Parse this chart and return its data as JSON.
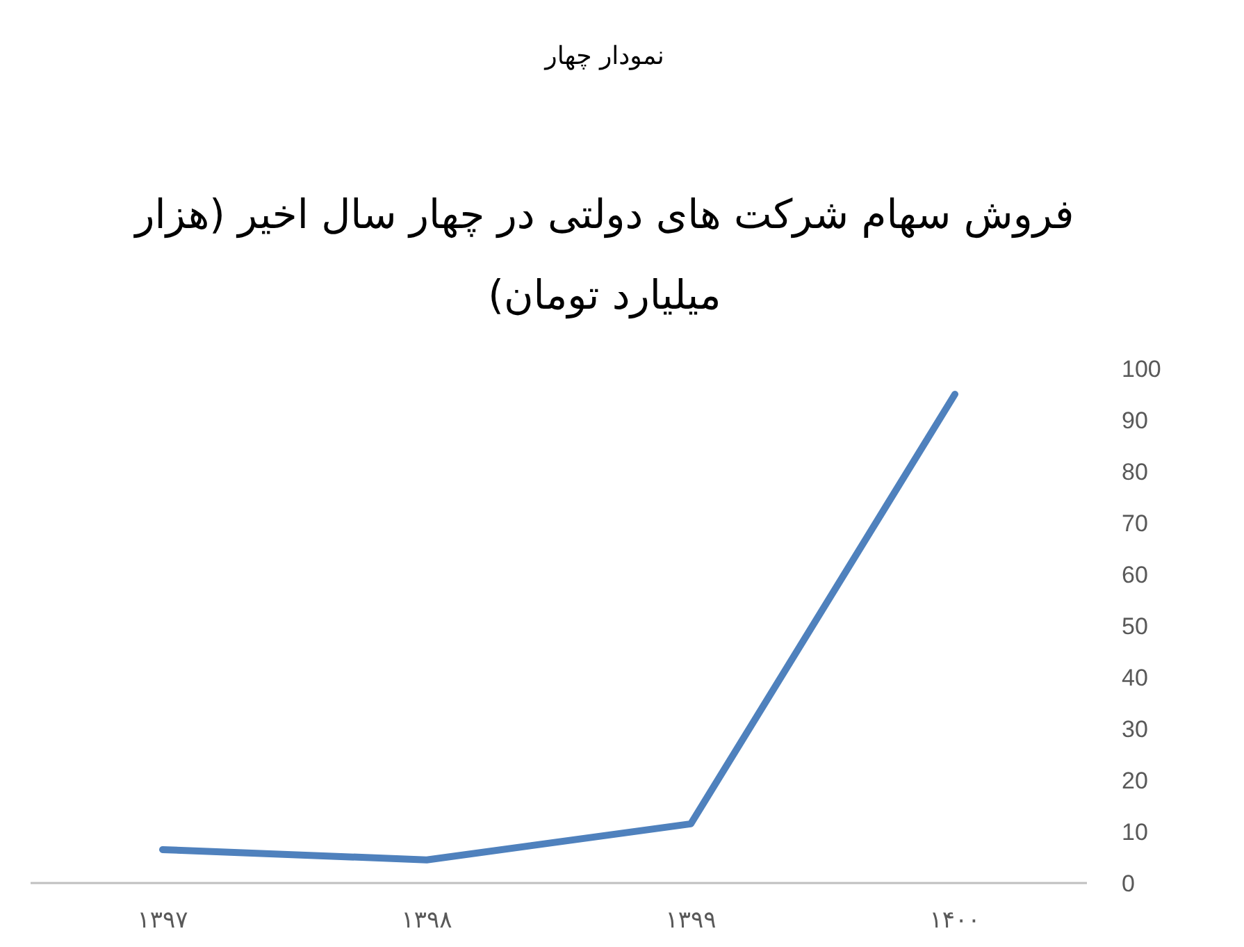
{
  "chart_data": {
    "type": "line",
    "title": "فروش سهام شرکت های دولتی در چهار سال اخیر (هزار میلیارد تومان)",
    "annotations": [
      "نمودار چهار"
    ],
    "categories": [
      "۱۳۹۷",
      "۱۳۹۸",
      "۱۳۹۹",
      "۱۴۰۰"
    ],
    "values": [
      6.5,
      4.5,
      11.5,
      95
    ],
    "color": "#4f81bd",
    "ylim": [
      0,
      100
    ],
    "yticks": [
      0,
      10,
      20,
      30,
      40,
      50,
      60,
      70,
      80,
      90,
      100
    ],
    "grid": false,
    "marker": "none",
    "line_style": "solid"
  }
}
